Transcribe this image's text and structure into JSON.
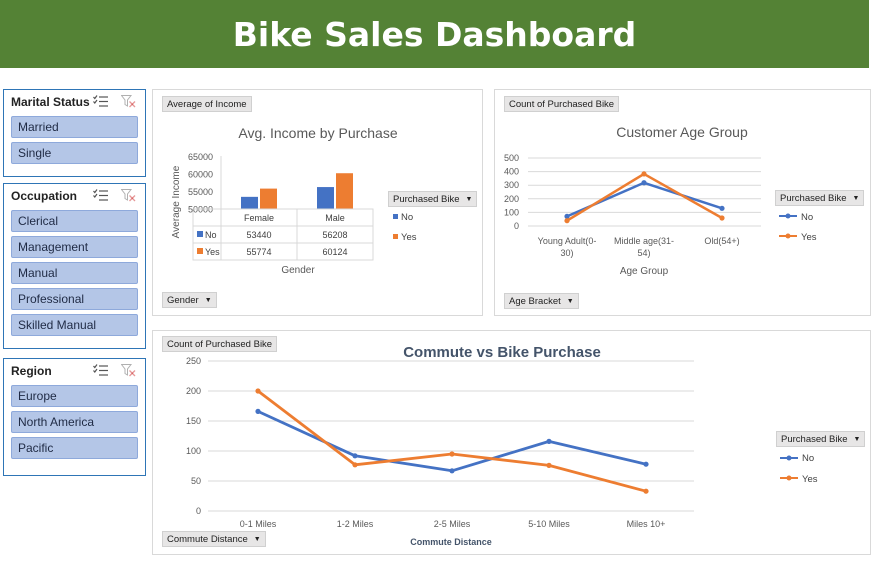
{
  "title": "Bike Sales Dashboard",
  "colors": {
    "banner": "#548235",
    "no": "#4472c4",
    "yes": "#ed7d31",
    "slicer_item": "#b4c6e7"
  },
  "slicers": [
    {
      "title": "Marital Status",
      "items": [
        "Married",
        "Single"
      ]
    },
    {
      "title": "Occupation",
      "items": [
        "Clerical",
        "Management",
        "Manual",
        "Professional",
        "Skilled Manual"
      ]
    },
    {
      "title": "Region",
      "items": [
        "Europe",
        "North America",
        "Pacific"
      ]
    }
  ],
  "icons": {
    "multiselect": "multi-select-icon",
    "clear": "clear-filter-icon"
  },
  "income_panel": {
    "value_button": "Average of Income",
    "axis_button": "Gender",
    "legend_button": "Purchased Bike"
  },
  "age_panel": {
    "value_button": "Count of Purchased Bike",
    "axis_button": "Age Bracket",
    "legend_button": "Purchased Bike"
  },
  "commute_panel": {
    "value_button": "Count of Purchased Bike",
    "axis_button": "Commute Distance",
    "legend_button": "Purchased Bike"
  },
  "chart_data": [
    {
      "type": "bar",
      "title": "Avg. Income by Purchase",
      "xlabel": "Gender",
      "ylabel": "Average Income",
      "categories": [
        "Female",
        "Male"
      ],
      "series": [
        {
          "name": "No",
          "values": [
            53440,
            56208
          ]
        },
        {
          "name": "Yes",
          "values": [
            55774,
            60124
          ]
        }
      ],
      "yticks": [
        "65000",
        "60000",
        "55000",
        "50000"
      ],
      "ylim": [
        50000,
        65000
      ],
      "legend": "right",
      "table_labels": {
        "no": "No",
        "yes": "Yes",
        "no_female": "53440",
        "no_male": "56208",
        "yes_female": "55774",
        "yes_male": "60124"
      }
    },
    {
      "type": "line",
      "title": "Customer Age Group",
      "xlabel": "Age Group",
      "categories": [
        "Young Adult(0-30)",
        "Middle age(31-54)",
        "Old(54+)"
      ],
      "category_lines": [
        [
          "Young Adult(0-",
          "30)"
        ],
        [
          "Middle age(31-",
          "54)"
        ],
        [
          "Old(54+)"
        ]
      ],
      "series": [
        {
          "name": "No",
          "values": [
            71,
            318,
            130
          ]
        },
        {
          "name": "Yes",
          "values": [
            39,
            383,
            59
          ]
        }
      ],
      "yticks": [
        "500",
        "400",
        "300",
        "200",
        "100",
        "0"
      ],
      "ylim": [
        0,
        500
      ],
      "legend": "right"
    },
    {
      "type": "line",
      "title": "Commute vs Bike Purchase",
      "xlabel": "Commute Distance",
      "categories": [
        "0-1 Miles",
        "1-2 Miles",
        "2-5 Miles",
        "5-10 Miles",
        "Miles 10+"
      ],
      "series": [
        {
          "name": "No",
          "values": [
            166,
            92,
            67,
            116,
            78
          ]
        },
        {
          "name": "Yes",
          "values": [
            200,
            77,
            95,
            76,
            33
          ]
        }
      ],
      "yticks": [
        "250",
        "200",
        "150",
        "100",
        "50",
        "0"
      ],
      "ylim": [
        0,
        250
      ],
      "legend": "right"
    }
  ]
}
